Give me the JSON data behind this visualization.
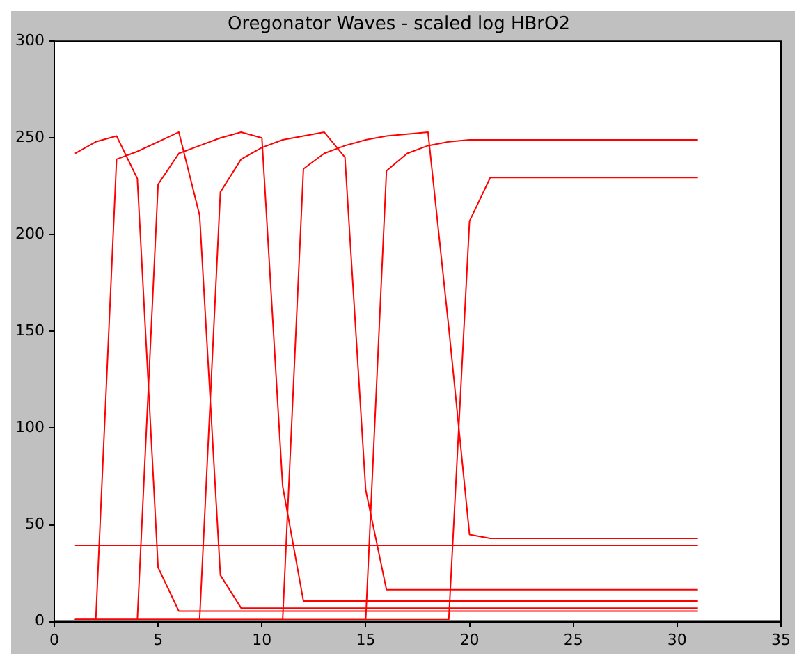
{
  "chart_data": {
    "type": "line",
    "title": "Oregonator Waves - scaled log HBrO2",
    "x": [
      1,
      2,
      3,
      4,
      5,
      6,
      7,
      8,
      9,
      10,
      11,
      12,
      13,
      14,
      15,
      16,
      17,
      18,
      19,
      20,
      21,
      22,
      23,
      24,
      25,
      26,
      27,
      28,
      29,
      30,
      31
    ],
    "series": [
      {
        "color": "#ff0000",
        "values": [
          242,
          248,
          251,
          229,
          28,
          5.4,
          5.4,
          5.4,
          5.4,
          5.4,
          5.4,
          5.4,
          5.4,
          5.4,
          5.4,
          5.4,
          5.4,
          5.4,
          5.4,
          5.4,
          5.4,
          5.4,
          5.4,
          5.4,
          5.4,
          5.4,
          5.4,
          5.4,
          5.4,
          5.4,
          5.4
        ]
      },
      {
        "color": "#ff0000",
        "values": [
          1,
          1,
          239,
          243,
          248,
          253,
          210,
          24,
          7,
          7,
          7,
          7,
          7,
          7,
          7,
          7,
          7,
          7,
          7,
          7,
          7,
          7,
          7,
          7,
          7,
          7,
          7,
          7,
          7,
          7,
          7
        ]
      },
      {
        "color": "#ff0000",
        "values": [
          1,
          1,
          1,
          1,
          226,
          242,
          246,
          250,
          253,
          250,
          70,
          10.6,
          10.6,
          10.6,
          10.6,
          10.6,
          10.6,
          10.6,
          10.6,
          10.6,
          10.6,
          10.6,
          10.6,
          10.6,
          10.6,
          10.6,
          10.6,
          10.6,
          10.6,
          10.6,
          10.6
        ]
      },
      {
        "color": "#ff0000",
        "values": [
          1,
          1,
          1,
          1,
          1,
          1,
          1,
          222,
          239,
          245,
          249,
          251,
          253,
          240,
          68,
          16.5,
          16.5,
          16.5,
          16.5,
          16.5,
          16.5,
          16.5,
          16.5,
          16.5,
          16.5,
          16.5,
          16.5,
          16.5,
          16.5,
          16.5,
          16.5
        ]
      },
      {
        "color": "#ff0000",
        "values": [
          1,
          1,
          1,
          1,
          1,
          1,
          1,
          1,
          1,
          1,
          1,
          234,
          242,
          246,
          249,
          251,
          252,
          253,
          152,
          45,
          43,
          43,
          43,
          43,
          43,
          43,
          43,
          43,
          43,
          43,
          43
        ]
      },
      {
        "color": "#ff0000",
        "values": [
          1,
          1,
          1,
          1,
          1,
          1,
          1,
          1,
          1,
          1,
          1,
          1,
          1,
          1,
          1,
          233,
          242,
          246,
          248,
          249,
          249,
          249,
          249,
          249,
          249,
          249,
          249,
          249,
          249,
          249,
          249
        ]
      },
      {
        "color": "#ff0000",
        "values": [
          1,
          1,
          1,
          1,
          1,
          1,
          1,
          1,
          1,
          1,
          1,
          1,
          1,
          1,
          1,
          1,
          1,
          1,
          1,
          207,
          229.5,
          229.5,
          229.5,
          229.5,
          229.5,
          229.5,
          229.5,
          229.5,
          229.5,
          229.5,
          229.5
        ]
      },
      {
        "color": "#ff0000",
        "values": [
          39.4,
          39.4,
          39.4,
          39.4,
          39.4,
          39.4,
          39.4,
          39.4,
          39.4,
          39.4,
          39.4,
          39.4,
          39.4,
          39.4,
          39.4,
          39.4,
          39.4,
          39.4,
          39.4,
          39.4,
          39.4,
          39.4,
          39.4,
          39.4,
          39.4,
          39.4,
          39.4,
          39.4,
          39.4,
          39.4,
          39.4
        ]
      }
    ],
    "xlim": [
      0,
      35
    ],
    "xticks": [
      0,
      5,
      10,
      15,
      20,
      25,
      30,
      35
    ],
    "ylim": [
      0,
      300
    ],
    "yticks": [
      0,
      50,
      100,
      150,
      200,
      250,
      300
    ],
    "grid": false,
    "legend": false,
    "marker": "none",
    "line_style": "solid"
  }
}
